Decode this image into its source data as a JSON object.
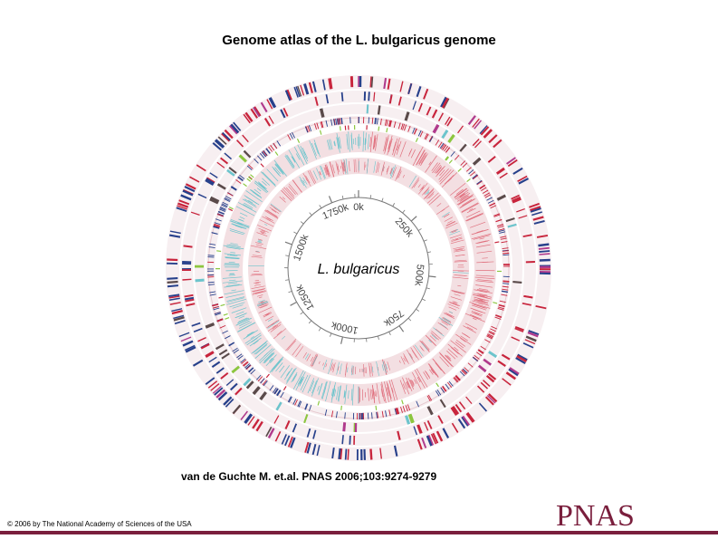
{
  "slide": {
    "title": "Genome atlas of the L. bulgaricus genome",
    "citation": "van de Guchte M. et.al. PNAS 2006;103:9274-9279",
    "copyright": "© 2006 by The National Academy of Sciences of the USA",
    "logo": "PNAS"
  },
  "atlas": {
    "center_label": "L. bulgaricus",
    "genome_length_kb": 1865,
    "scale_ticks": [
      {
        "kb": 0,
        "label": "0k"
      },
      {
        "kb": 250,
        "label": "250k"
      },
      {
        "kb": 500,
        "label": "500k"
      },
      {
        "kb": 750,
        "label": "750k"
      },
      {
        "kb": 1000,
        "label": "1000k"
      },
      {
        "kb": 1250,
        "label": "1250k"
      },
      {
        "kb": 1500,
        "label": "1500k"
      },
      {
        "kb": 1750,
        "label": "1750k"
      }
    ],
    "colors": {
      "background_ring": "#f7eff1",
      "gc_skew_positive": "#e0707e",
      "gc_skew_negative": "#6cc4cc",
      "gc_ring_bg": "#f3dfe2",
      "strand_forward": "#c8243c",
      "strand_reverse": "#27408b",
      "pseudogene": "#5a4a4a",
      "trna": "#8cc63f",
      "rrna": "#9a9a9a",
      "is_element": "#6cc4cc",
      "accent_magenta": "#b03a8c",
      "scale": "#777777"
    }
  }
}
